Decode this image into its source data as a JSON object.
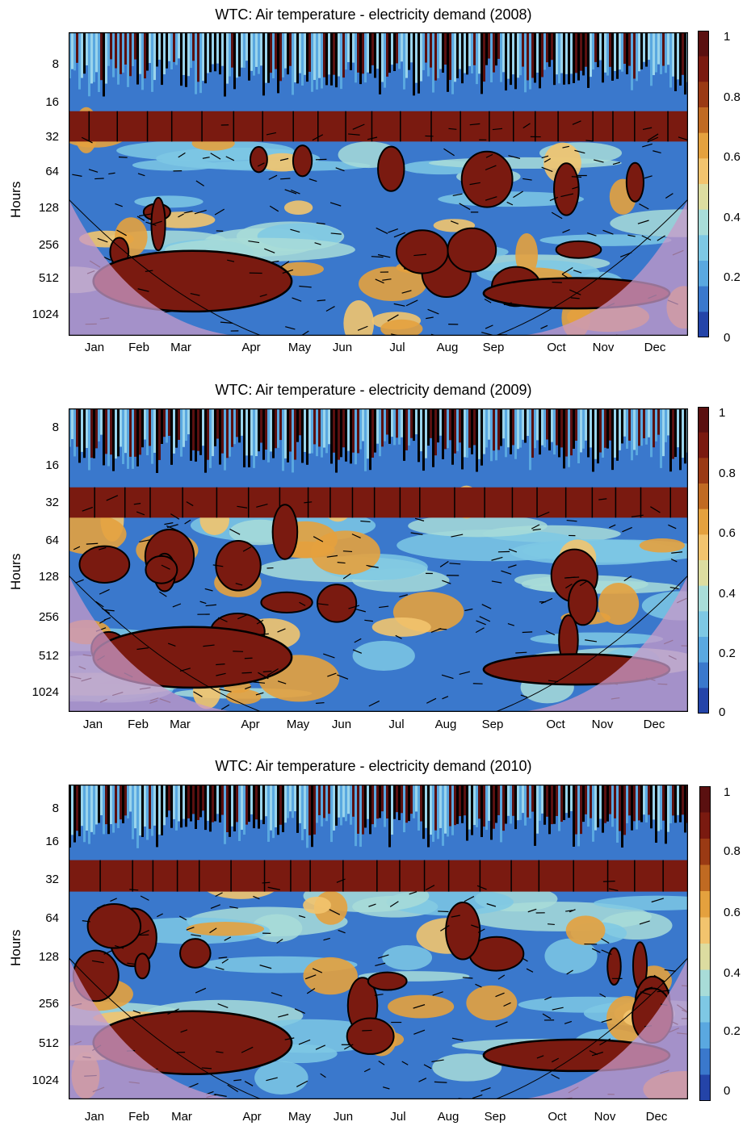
{
  "colorbar": {
    "ticks": [
      "1",
      "0.8",
      "0.6",
      "0.4",
      "0.2",
      "0"
    ],
    "colors": [
      "#5a1010",
      "#7a1a10",
      "#9a3a14",
      "#c06a22",
      "#e4a13e",
      "#f2c46e",
      "#dcdca0",
      "#a8dcd8",
      "#7ec8e4",
      "#5aa8e0",
      "#3a78cc",
      "#2444a8"
    ]
  },
  "chart_data": [
    {
      "type": "heatmap",
      "title": "WTC: Air temperature  -  electricity demand (2008)",
      "ylabel": "Hours",
      "y_ticks": [
        "8",
        "16",
        "32",
        "64",
        "128",
        "256",
        "512",
        "1024"
      ],
      "x_ticks": [
        "Jan",
        "Feb",
        "Mar",
        "Apr",
        "May",
        "Jun",
        "Jul",
        "Aug",
        "Sep",
        "Oct",
        "Nov",
        "Dec"
      ],
      "colorbar_range": [
        0,
        1
      ],
      "y_scale": "log2"
    },
    {
      "type": "heatmap",
      "title": "WTC: Air temperature  -  electricity demand (2009)",
      "ylabel": "Hours",
      "y_ticks": [
        "8",
        "16",
        "32",
        "64",
        "128",
        "256",
        "512",
        "1024"
      ],
      "x_ticks": [
        "Jan",
        "Feb",
        "Mar",
        "Apr",
        "May",
        "Jun",
        "Jul",
        "Aug",
        "Sep",
        "Oct",
        "Nov",
        "Dec"
      ],
      "colorbar_range": [
        0,
        1
      ],
      "y_scale": "log2"
    },
    {
      "type": "heatmap",
      "title": "WTC: Air temperature  -  electricity demand (2010)",
      "ylabel": "Hours",
      "y_ticks": [
        "8",
        "16",
        "32",
        "64",
        "128",
        "256",
        "512",
        "1024"
      ],
      "x_ticks": [
        "Jan",
        "Feb",
        "Mar",
        "Apr",
        "May",
        "Jun",
        "Jul",
        "Aug",
        "Sep",
        "Oct",
        "Nov",
        "Dec"
      ],
      "colorbar_range": [
        0,
        1
      ],
      "y_scale": "log2"
    }
  ]
}
